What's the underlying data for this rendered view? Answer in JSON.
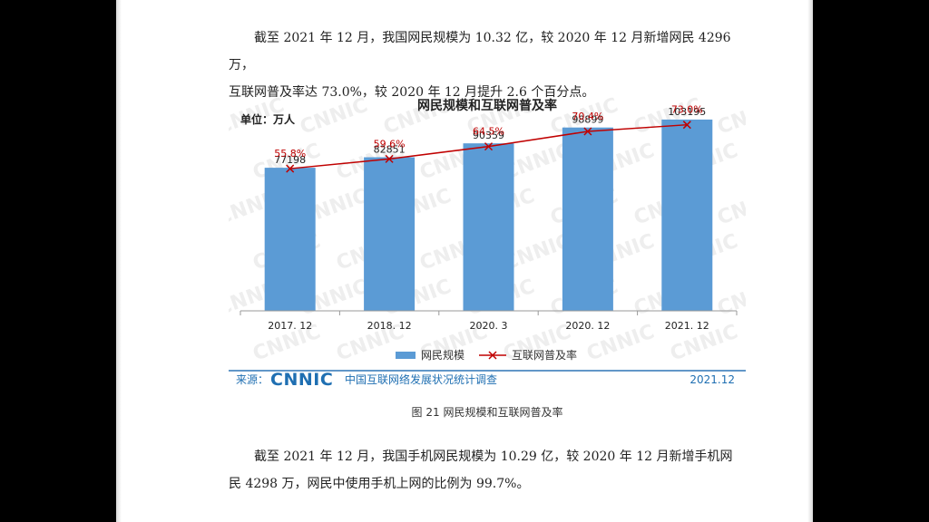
{
  "paragraphs": {
    "p1_line1": "截至 2021 年 12 月，我国网民规模为 10.32 亿，较 2020 年 12 月新增网民 4296 万，",
    "p1_line2": "互联网普及率达 73.0%，较 2020 年 12 月提升 2.6 个百分点。",
    "p2_line1": "截至 2021 年 12 月，我国手机网民规模为 10.29 亿，较 2020 年 12 月新增手机网",
    "p2_line2": "民 4298 万，网民中使用手机上网的比例为 99.7%。"
  },
  "figure": {
    "caption": "图 21  网民规模和互联网普及率",
    "unit_label": "单位：万人",
    "source_label": "来源：",
    "source_logo_text": "CNNIC",
    "source_name": "中国互联网络发展状况统计调查",
    "source_date": "2021.12",
    "watermark_text": "CNNIC"
  },
  "chart_data": {
    "type": "bar",
    "title": "网民规模和互联网普及率",
    "categories": [
      "2017. 12",
      "2018. 12",
      "2020. 3",
      "2020. 12",
      "2021. 12"
    ],
    "series": [
      {
        "name": "网民规模",
        "type": "bar",
        "values": [
          77198,
          82851,
          90359,
          98899,
          103195
        ],
        "labels": [
          "77198",
          "82851",
          "90359",
          "98899",
          "103195"
        ]
      },
      {
        "name": "互联网普及率",
        "type": "line",
        "values": [
          55.8,
          59.6,
          64.5,
          70.4,
          73.0
        ],
        "labels": [
          "55.8%",
          "59.6%",
          "64.5%",
          "70.4%",
          "73.0%"
        ]
      }
    ],
    "colors": {
      "bar": "#5b9bd5",
      "line": "#c00000",
      "source_blue": "#1f6fb2"
    },
    "ylim": [
      0,
      110000
    ],
    "y2lim": [
      0,
      80
    ],
    "grid": false,
    "legend": "bottom"
  }
}
